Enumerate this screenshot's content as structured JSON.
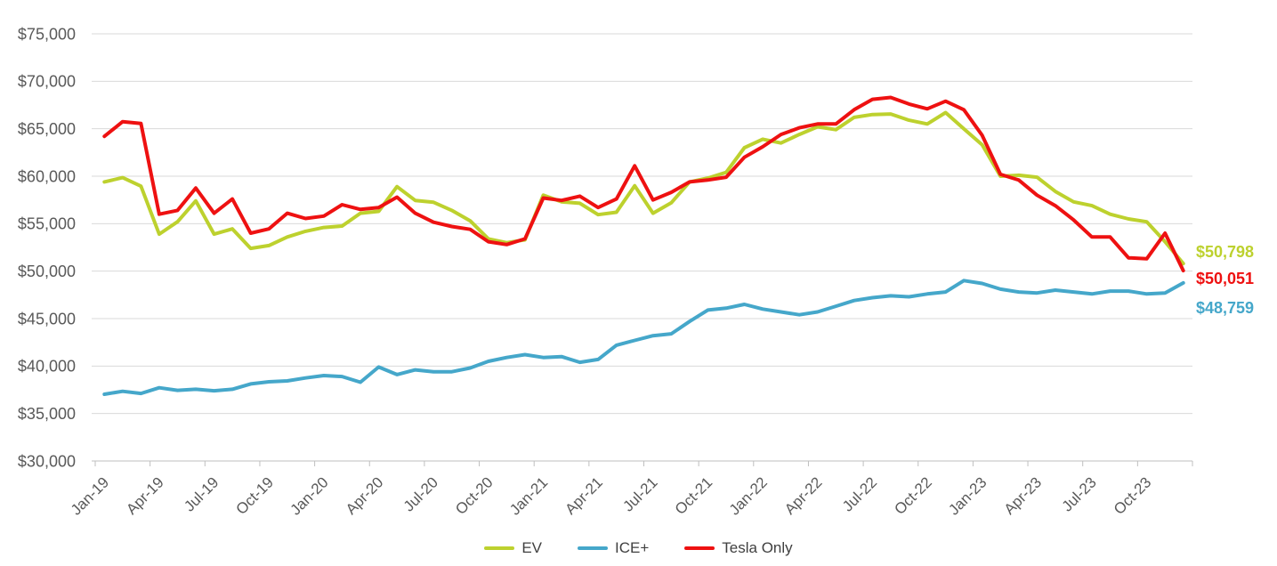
{
  "chart_data": {
    "type": "line",
    "title": "",
    "xlabel": "",
    "ylabel": "",
    "ylim": [
      30000,
      75000
    ],
    "ytick_step": 5000,
    "ytick_labels": [
      "$30,000",
      "$35,000",
      "$40,000",
      "$45,000",
      "$50,000",
      "$55,000",
      "$60,000",
      "$65,000",
      "$70,000",
      "$75,000"
    ],
    "xtick_labels_shown": [
      "Jan-19",
      "Apr-19",
      "Jul-19",
      "Oct-19",
      "Jan-20",
      "Apr-20",
      "Jul-20",
      "Oct-20",
      "Jan-21",
      "Apr-21",
      "Jul-21",
      "Oct-21",
      "Jan-22",
      "Apr-22",
      "Jul-22",
      "Oct-22",
      "Jan-23",
      "Apr-23",
      "Jul-23",
      "Oct-23"
    ],
    "grid": "horizontal",
    "legend_position": "bottom-center",
    "x": [
      "Jan-19",
      "Feb-19",
      "Mar-19",
      "Apr-19",
      "May-19",
      "Jun-19",
      "Jul-19",
      "Aug-19",
      "Sep-19",
      "Oct-19",
      "Nov-19",
      "Dec-19",
      "Jan-20",
      "Feb-20",
      "Mar-20",
      "Apr-20",
      "May-20",
      "Jun-20",
      "Jul-20",
      "Aug-20",
      "Sep-20",
      "Oct-20",
      "Nov-20",
      "Dec-20",
      "Jan-21",
      "Feb-21",
      "Mar-21",
      "Apr-21",
      "May-21",
      "Jun-21",
      "Jul-21",
      "Aug-21",
      "Sep-21",
      "Oct-21",
      "Nov-21",
      "Dec-21",
      "Jan-22",
      "Feb-22",
      "Mar-22",
      "Apr-22",
      "May-22",
      "Jun-22",
      "Jul-22",
      "Aug-22",
      "Sep-22",
      "Oct-22",
      "Nov-22",
      "Dec-22",
      "Jan-23",
      "Feb-23",
      "Mar-23",
      "Apr-23",
      "May-23",
      "Jun-23",
      "Jul-23",
      "Aug-23",
      "Sep-23",
      "Oct-23",
      "Nov-23",
      "Dec-23"
    ],
    "series": [
      {
        "name": "EV",
        "color": "#bdd12e",
        "end_label": "$50,798",
        "values": [
          59400,
          59850,
          58950,
          53900,
          55200,
          57400,
          53900,
          54450,
          52400,
          52700,
          53600,
          54200,
          54600,
          54750,
          56100,
          56300,
          58900,
          57450,
          57250,
          56400,
          55300,
          53400,
          53000,
          53300,
          58000,
          57300,
          57150,
          55950,
          56200,
          59000,
          56100,
          57200,
          59400,
          59800,
          60400,
          63000,
          63900,
          63500,
          64400,
          65200,
          64900,
          66200,
          66500,
          66550,
          65900,
          65500,
          66700,
          65000,
          63300,
          60000,
          60100,
          59900,
          58400,
          57300,
          56900,
          56000,
          55500,
          55200,
          53100,
          50798
        ]
      },
      {
        "name": "ICE+",
        "color": "#45a7ca",
        "end_label": "$48,759",
        "values": [
          37030,
          37340,
          37120,
          37720,
          37440,
          37560,
          37400,
          37560,
          38120,
          38340,
          38440,
          38750,
          39000,
          38900,
          38300,
          39900,
          39100,
          39600,
          39400,
          39400,
          39800,
          40500,
          40900,
          41200,
          40900,
          41000,
          40400,
          40700,
          42200,
          42700,
          43200,
          43400,
          44700,
          45900,
          46100,
          46500,
          46000,
          45700,
          45400,
          45700,
          46300,
          46900,
          47200,
          47400,
          47300,
          47600,
          47800,
          49000,
          48700,
          48100,
          47800,
          47700,
          48000,
          47800,
          47600,
          47900,
          47900,
          47600,
          47700,
          48759
        ]
      },
      {
        "name": "Tesla Only",
        "color": "#ee1111",
        "end_label": "$50,051",
        "values": [
          64200,
          65750,
          65550,
          56000,
          56400,
          58750,
          56100,
          57600,
          54000,
          54450,
          56100,
          55550,
          55800,
          57000,
          56500,
          56700,
          57800,
          56100,
          55150,
          54700,
          54400,
          53100,
          52800,
          53400,
          57700,
          57450,
          57900,
          56700,
          57600,
          61100,
          57500,
          58300,
          59400,
          59600,
          59900,
          62000,
          63100,
          64400,
          65100,
          65500,
          65500,
          67000,
          68100,
          68300,
          67600,
          67100,
          67900,
          67000,
          64300,
          60200,
          59600,
          58000,
          56900,
          55400,
          53600,
          53600,
          51400,
          51300,
          54000,
          50051
        ]
      }
    ],
    "theme": {
      "grid_color": "#d9d9d9",
      "axis_color": "#bfbfbf",
      "tick_label_color": "#595959",
      "legend_text_color": "#404040",
      "background": "#ffffff"
    }
  },
  "legend": {
    "items": [
      {
        "label": "EV"
      },
      {
        "label": "ICE+"
      },
      {
        "label": "Tesla Only"
      }
    ]
  }
}
